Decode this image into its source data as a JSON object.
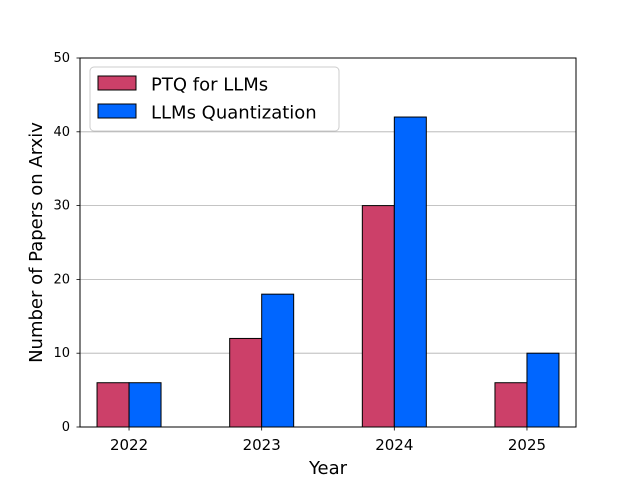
{
  "chart_data": {
    "type": "bar",
    "title": "",
    "xlabel": "Year",
    "ylabel": "Number of Papers on Arxiv",
    "categories": [
      "2022",
      "2023",
      "2024",
      "2025"
    ],
    "series": [
      {
        "name": "PTQ for LLMs",
        "color": "#CC4069",
        "values": [
          6,
          12,
          30,
          6
        ]
      },
      {
        "name": "LLMs Quantization",
        "color": "#0066FF",
        "values": [
          6,
          18,
          42,
          10
        ]
      }
    ],
    "ylim": [
      0,
      50
    ],
    "yticks": [
      0,
      10,
      20,
      30,
      40,
      50
    ],
    "grid": "y-axis",
    "legend_position": "top-left"
  }
}
